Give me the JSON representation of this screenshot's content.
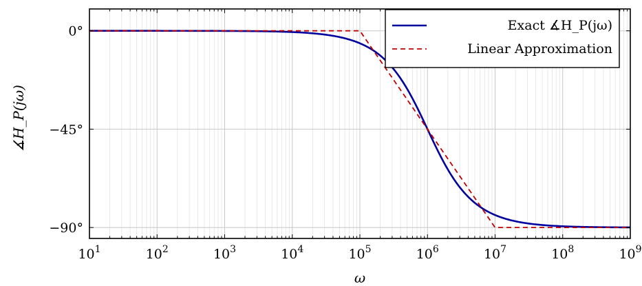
{
  "chart_data": {
    "type": "line",
    "title": "",
    "xlabel": "ω",
    "ylabel": "∡H_P(jω)",
    "x_scale": "log",
    "xlim": [
      10,
      1000000000
    ],
    "ylim": [
      -95,
      10
    ],
    "x_ticks": [
      10,
      100,
      1000,
      10000,
      100000,
      1000000,
      10000000,
      100000000,
      1000000000
    ],
    "y_ticks": [
      {
        "value": 0,
        "label": "0°"
      },
      {
        "value": -45,
        "label": "−45°"
      },
      {
        "value": -90,
        "label": "−90°"
      }
    ],
    "grid": true,
    "legend_position": "top-right",
    "series": [
      {
        "name": "Exact ∡H_P(jω)",
        "color": "#00009e",
        "style": "solid",
        "x": [
          10,
          1000,
          10000,
          30000,
          100000,
          200000,
          300000,
          500000,
          1000000,
          2000000,
          3000000,
          5000000,
          10000000,
          100000000,
          1000000000
        ],
        "y": [
          0,
          -0.06,
          -0.6,
          -1.7,
          -5.7,
          -11.3,
          -16.7,
          -26.6,
          -45,
          -63.4,
          -71.6,
          -78.7,
          -84.3,
          -89.4,
          -89.9
        ]
      },
      {
        "name": "Linear Approximation",
        "color": "#c00000",
        "style": "dashed",
        "x": [
          10,
          100000,
          10000000,
          1000000000
        ],
        "y": [
          0,
          0,
          -90,
          -90
        ]
      }
    ]
  }
}
